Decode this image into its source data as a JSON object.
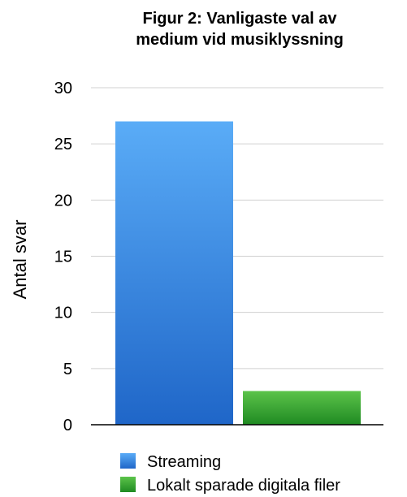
{
  "chart_data": {
    "type": "bar",
    "title_lines": [
      "Figur 2: Vanligaste val av",
      "medium vid musiklyssning"
    ],
    "xlabel": "",
    "ylabel": "Antal svar",
    "ylim": [
      0,
      30
    ],
    "yticks": [
      0,
      5,
      10,
      15,
      20,
      25,
      30
    ],
    "grid": true,
    "legend_position": "bottom",
    "series": [
      {
        "name": "Streaming",
        "value": 27,
        "color": "#2f86e6"
      },
      {
        "name": "Lokalt sparade digitala filer",
        "value": 3,
        "color": "#3aa52c"
      }
    ]
  }
}
